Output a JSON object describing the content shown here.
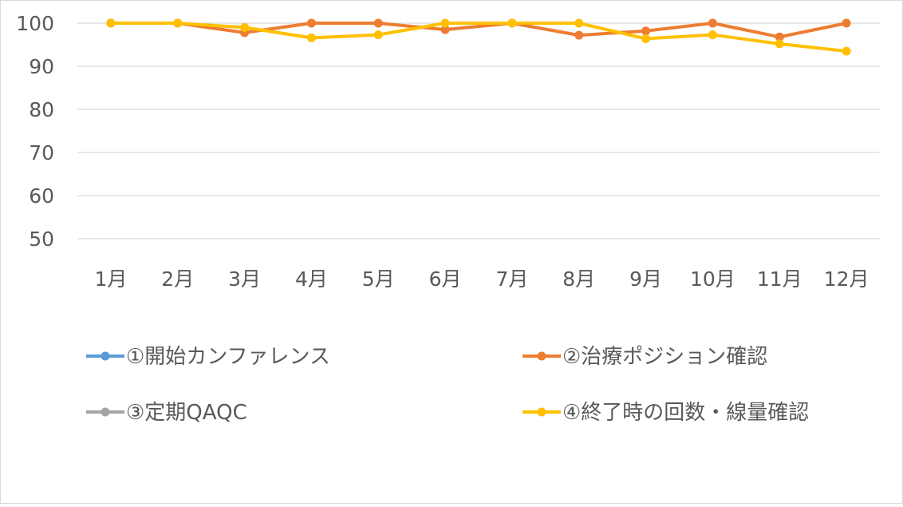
{
  "chart_data": {
    "type": "line",
    "title": "",
    "xlabel": "",
    "ylabel": "",
    "categories": [
      "1月",
      "2月",
      "3月",
      "4月",
      "5月",
      "6月",
      "7月",
      "8月",
      "9月",
      "10月",
      "11月",
      "12月"
    ],
    "ylim": [
      50,
      100
    ],
    "yticks": [
      100,
      90,
      80,
      70,
      60,
      50
    ],
    "grid": true,
    "legend_position": "bottom",
    "series": [
      {
        "name": "①開始カンファレンス",
        "color": "#5B9BD5",
        "values": [
          100,
          100,
          null,
          null,
          null,
          null,
          null,
          null,
          null,
          null,
          null,
          null
        ]
      },
      {
        "name": "②治療ポジション確認",
        "color": "#ED7D31",
        "values": [
          100,
          100,
          97.8,
          100,
          100,
          98.5,
          100,
          97.2,
          98.2,
          100,
          96.8,
          100
        ]
      },
      {
        "name": "③定期QAQC",
        "color": "#A5A5A5",
        "values": [
          100,
          100,
          null,
          null,
          null,
          null,
          null,
          null,
          null,
          null,
          null,
          null
        ]
      },
      {
        "name": "④終了時の回数・線量確認",
        "color": "#FFC000",
        "values": [
          100,
          100,
          99,
          96.6,
          97.3,
          100,
          100,
          100,
          96.4,
          97.3,
          95.2,
          93.5
        ]
      }
    ]
  }
}
